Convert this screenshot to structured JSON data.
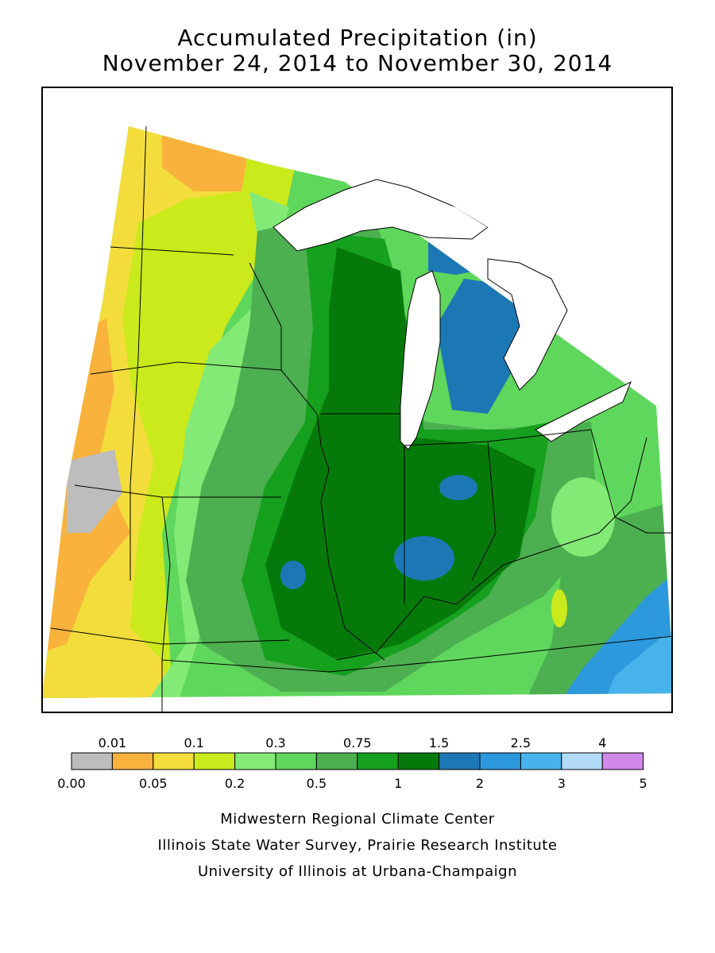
{
  "title_line1": "Accumulated Precipitation (in)",
  "title_line2": "November 24, 2014 to November 30, 2014",
  "legend": {
    "bins": [
      {
        "color": "#bdbdbd"
      },
      {
        "color": "#f9b23c"
      },
      {
        "color": "#f3dd3c"
      },
      {
        "color": "#cbea1c"
      },
      {
        "color": "#84ea76"
      },
      {
        "color": "#5fd65c"
      },
      {
        "color": "#4caf50"
      },
      {
        "color": "#15a01e"
      },
      {
        "color": "#057a0a"
      },
      {
        "color": "#1c78b5"
      },
      {
        "color": "#2b99dc"
      },
      {
        "color": "#46b3ec"
      },
      {
        "color": "#b2daf7"
      },
      {
        "color": "#d288e9"
      }
    ],
    "top_labels": [
      "0.01",
      "0.1",
      "0.3",
      "0.75",
      "1.5",
      "2.5",
      "4"
    ],
    "bottom_labels": [
      "0.00",
      "0.05",
      "0.2",
      "0.5",
      "1",
      "2",
      "3",
      "5"
    ]
  },
  "credits": [
    "Midwestern Regional Climate Center",
    "Illinois State Water Survey, Prairie Research Institute",
    "University of Illinois at Urbana-Champaign"
  ],
  "palette": {
    "lake": "#ffffff",
    "border": "#000000"
  }
}
